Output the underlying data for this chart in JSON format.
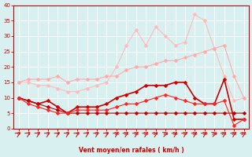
{
  "x": [
    0,
    1,
    2,
    3,
    4,
    5,
    6,
    7,
    8,
    9,
    10,
    11,
    12,
    13,
    14,
    15,
    16,
    17,
    18,
    19,
    20,
    21,
    22,
    23
  ],
  "line1": [
    15,
    16,
    16,
    16,
    17,
    15,
    16,
    16,
    16,
    17,
    17,
    19,
    20,
    20,
    21,
    22,
    22,
    23,
    24,
    25,
    26,
    27,
    17,
    10
  ],
  "line2": [
    10,
    9,
    8,
    9,
    7,
    5,
    7,
    7,
    7,
    8,
    10,
    11,
    12,
    14,
    14,
    14,
    15,
    15,
    10,
    8,
    8,
    16,
    3,
    3
  ],
  "line3": [
    10,
    8,
    7,
    6,
    5,
    5,
    6,
    6,
    6,
    6,
    7,
    8,
    8,
    9,
    10,
    11,
    10,
    9,
    8,
    8,
    8,
    9,
    1,
    3
  ],
  "line4": [
    10,
    9,
    8,
    7,
    6,
    5,
    5,
    5,
    5,
    5,
    5,
    5,
    5,
    5,
    5,
    5,
    5,
    5,
    5,
    5,
    5,
    5,
    5,
    5
  ],
  "line5": [
    15,
    15,
    14,
    14,
    13,
    12,
    12,
    13,
    14,
    15,
    20,
    27,
    32,
    27,
    33,
    30,
    27,
    28,
    37,
    35,
    26,
    17,
    9,
    10
  ],
  "background_color": "#d8f0f0",
  "grid_color": "#ffffff",
  "line1_color": "#ffaaaa",
  "line2_color": "#cc0000",
  "line3_color": "#ff2222",
  "line4_color": "#bb0000",
  "line5_color": "#ffbbbb",
  "axis_color": "#cc0000",
  "text_color": "#cc0000",
  "xlabel": "Vent moyen/en rafales ( km/h )",
  "ylim": [
    0,
    40
  ],
  "xlim": [
    -0.5,
    23.5
  ],
  "yticks": [
    0,
    5,
    10,
    15,
    20,
    25,
    30,
    35,
    40
  ],
  "xticks": [
    0,
    1,
    2,
    3,
    4,
    5,
    6,
    7,
    8,
    9,
    10,
    11,
    12,
    13,
    14,
    15,
    16,
    17,
    18,
    19,
    20,
    21,
    22,
    23
  ]
}
